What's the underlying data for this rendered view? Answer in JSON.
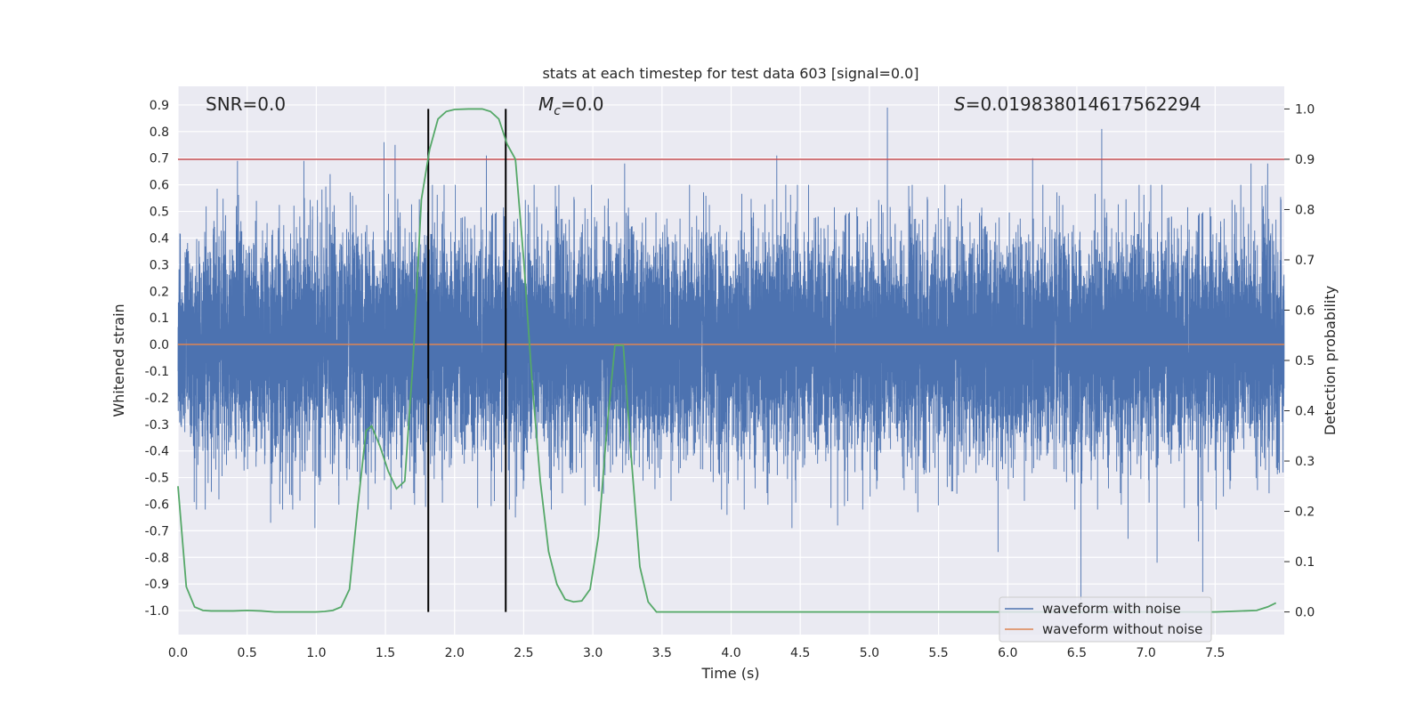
{
  "chart_data": {
    "type": "line",
    "title": "stats at each timestep for test data 603 [signal=0.0]",
    "xlabel": "Time (s)",
    "ylabel": "Whitened strain",
    "y2label": "Detection probability",
    "xlim": [
      0.0,
      8.0
    ],
    "ylim": [
      -1.09,
      0.97
    ],
    "y2lim": [
      -0.045,
      1.045
    ],
    "xticks": [
      "0.0",
      "0.5",
      "1.0",
      "1.5",
      "2.0",
      "2.5",
      "3.0",
      "3.5",
      "4.0",
      "4.5",
      "5.0",
      "5.5",
      "6.0",
      "6.5",
      "7.0",
      "7.5"
    ],
    "yticks": [
      "0.9",
      "0.8",
      "0.7",
      "0.6",
      "0.5",
      "0.4",
      "0.3",
      "0.2",
      "0.1",
      "0.0",
      "-0.1",
      "-0.2",
      "-0.3",
      "-0.4",
      "-0.5",
      "-0.6",
      "-0.7",
      "-0.8",
      "-0.9",
      "-1.0"
    ],
    "y2ticks": [
      "0.0",
      "0.1",
      "0.2",
      "0.3",
      "0.4",
      "0.5",
      "0.6",
      "0.7",
      "0.8",
      "0.9",
      "1.0"
    ],
    "grid": true,
    "legend_position": "bottom-right",
    "annotations": {
      "snr": "SNR=0.0",
      "mc_symbol": "M",
      "mc_sub": "c",
      "mc_value": "=0.0",
      "s_symbol": "S",
      "s_value": "=0.019838014617562294"
    },
    "threshold": {
      "y2": 0.9,
      "color": "#c44e52"
    },
    "markers_x": [
      1.81,
      2.37
    ],
    "series": [
      {
        "name": "waveform with noise",
        "color": "#4c72b0",
        "axis": "left",
        "sample_rate": 2048,
        "duration_s": 8.0,
        "noise_sigma": 0.2,
        "spikes": [
          {
            "t": 0.43,
            "y": 0.69
          },
          {
            "t": 0.67,
            "y": -0.67
          },
          {
            "t": 0.91,
            "y": 0.69
          },
          {
            "t": 0.99,
            "y": -0.69
          },
          {
            "t": 1.1,
            "y": 0.64
          },
          {
            "t": 1.49,
            "y": 0.76
          },
          {
            "t": 1.57,
            "y": 0.75
          },
          {
            "t": 1.79,
            "y": -0.61
          },
          {
            "t": 2.23,
            "y": 0.71
          },
          {
            "t": 2.44,
            "y": -0.65
          },
          {
            "t": 2.7,
            "y": -0.62
          },
          {
            "t": 3.23,
            "y": 0.68
          },
          {
            "t": 4.33,
            "y": 0.71
          },
          {
            "t": 4.44,
            "y": -0.69
          },
          {
            "t": 5.13,
            "y": 0.89
          },
          {
            "t": 5.35,
            "y": -0.63
          },
          {
            "t": 5.93,
            "y": -0.78
          },
          {
            "t": 6.18,
            "y": 0.7
          },
          {
            "t": 6.53,
            "y": -0.96
          },
          {
            "t": 6.68,
            "y": 0.81
          },
          {
            "t": 6.87,
            "y": -0.73
          },
          {
            "t": 7.08,
            "y": -0.82
          },
          {
            "t": 7.38,
            "y": -0.74
          },
          {
            "t": 7.41,
            "y": -0.93
          },
          {
            "t": 7.76,
            "y": 0.68
          },
          {
            "t": 7.88,
            "y": 0.68
          },
          {
            "t": 3.97,
            "y": -0.64
          },
          {
            "t": 4.77,
            "y": -0.68
          }
        ]
      },
      {
        "name": "waveform without noise",
        "color": "#dd8452",
        "axis": "left",
        "x": [
          0.0,
          8.0
        ],
        "y": [
          0.0,
          0.0
        ]
      },
      {
        "name": "",
        "color": "#55a868",
        "axis": "right",
        "x": [
          0.0,
          0.06,
          0.12,
          0.18,
          0.24,
          0.3,
          0.4,
          0.5,
          0.6,
          0.7,
          0.8,
          0.9,
          1.0,
          1.06,
          1.12,
          1.18,
          1.24,
          1.3,
          1.36,
          1.4,
          1.46,
          1.52,
          1.58,
          1.64,
          1.7,
          1.76,
          1.82,
          1.88,
          1.94,
          2.0,
          2.1,
          2.2,
          2.26,
          2.32,
          2.38,
          2.44,
          2.5,
          2.56,
          2.62,
          2.68,
          2.74,
          2.8,
          2.86,
          2.92,
          2.98,
          3.04,
          3.1,
          3.16,
          3.22,
          3.28,
          3.34,
          3.4,
          3.46,
          3.54,
          3.6,
          3.8,
          4.0,
          4.5,
          5.0,
          5.5,
          6.0,
          6.5,
          7.0,
          7.5,
          7.8,
          7.88,
          7.94
        ],
        "y": [
          0.25,
          0.05,
          0.01,
          0.003,
          0.002,
          0.002,
          0.002,
          0.003,
          0.002,
          0.0,
          0.0,
          0.0,
          0.0,
          0.001,
          0.003,
          0.01,
          0.045,
          0.21,
          0.36,
          0.37,
          0.33,
          0.28,
          0.245,
          0.26,
          0.5,
          0.82,
          0.92,
          0.98,
          0.995,
          0.999,
          1.0,
          1.0,
          0.995,
          0.98,
          0.93,
          0.9,
          0.7,
          0.46,
          0.26,
          0.12,
          0.055,
          0.025,
          0.02,
          0.022,
          0.045,
          0.15,
          0.36,
          0.53,
          0.53,
          0.3,
          0.09,
          0.02,
          0.0,
          0.0,
          0.0,
          0.0,
          0.0,
          0.0,
          0.0,
          0.0,
          0.0,
          0.0,
          0.0,
          0.0,
          0.003,
          0.01,
          0.018
        ]
      }
    ],
    "colors": {
      "plot_bg": "#eaeaf2",
      "grid": "#ffffff",
      "marker": "#000000"
    }
  }
}
